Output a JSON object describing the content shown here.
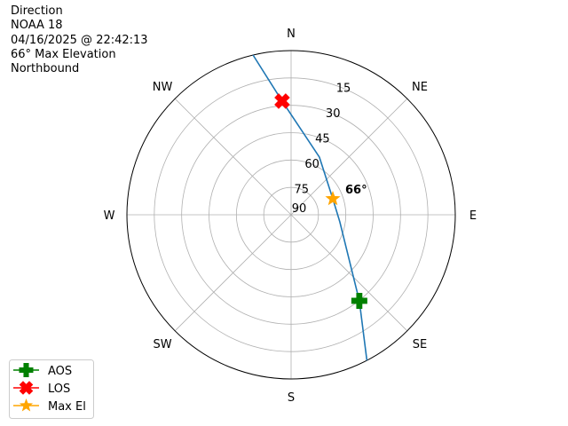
{
  "chart_data": {
    "type": "polar-line",
    "title_lines": [
      "Direction",
      "NOAA 18",
      "04/16/2025 @ 22:42:13",
      "66° Max Elevation",
      "Northbound"
    ],
    "radial_axis": {
      "quantity": "elevation",
      "range": [
        90,
        0
      ],
      "ticks": [
        "15",
        "30",
        "45",
        "60",
        "75",
        "90"
      ],
      "tick_values": [
        15,
        30,
        45,
        60,
        75,
        90
      ]
    },
    "angular_axis": {
      "zero": "top",
      "direction": "clockwise",
      "labels": [
        "N",
        "NE",
        "E",
        "SE",
        "S",
        "SW",
        "W",
        "NW"
      ]
    },
    "grid": true,
    "track": {
      "color": "#1f77b4",
      "points": [
        {
          "az": 152.5,
          "el": 0
        },
        {
          "az": 141.6,
          "el": 29.8
        },
        {
          "az": 98.3,
          "el": 63
        },
        {
          "az": 69,
          "el": 65.5
        },
        {
          "az": 26.2,
          "el": 54.8
        },
        {
          "az": 355.5,
          "el": 27.5
        },
        {
          "az": 346.6,
          "el": 0
        }
      ]
    },
    "markers": [
      {
        "name": "AOS",
        "az": 141.6,
        "el": 29.8,
        "color": "#008000",
        "shape": "plus-filled"
      },
      {
        "name": "LOS",
        "az": 355.5,
        "el": 27.5,
        "color": "#ff0000",
        "shape": "x-filled"
      },
      {
        "name": "Max El",
        "az": 69,
        "el": 65.5,
        "color": "#ffa500",
        "shape": "star"
      }
    ],
    "annotation": {
      "text": "66°",
      "bold": true
    },
    "legend": {
      "placement": "lower-left",
      "entries": [
        "AOS",
        "LOS",
        "Max El"
      ]
    }
  }
}
